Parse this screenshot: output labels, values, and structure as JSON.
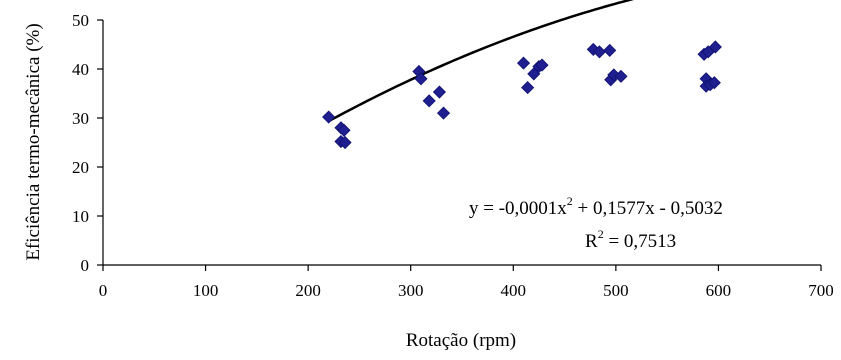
{
  "chart_data": {
    "type": "scatter",
    "title": "",
    "xlabel": "Rotação (rpm)",
    "ylabel": "Eficiência termo-mecânica (%)",
    "xlim": [
      0,
      700
    ],
    "ylim": [
      0,
      50
    ],
    "xticks": [
      "0",
      "100",
      "200",
      "300",
      "400",
      "500",
      "600",
      "700"
    ],
    "yticks": [
      "0",
      "10",
      "20",
      "30",
      "40",
      "50"
    ],
    "grid": false,
    "legend": "none",
    "colors": {
      "points": "#1f1f8f",
      "trendline": "#000000",
      "axes": "#000000"
    },
    "points": [
      [
        220,
        30.2
      ],
      [
        232,
        28.0
      ],
      [
        235,
        27.5
      ],
      [
        232,
        25.2
      ],
      [
        236,
        25.0
      ],
      [
        308,
        39.5
      ],
      [
        310,
        38.0
      ],
      [
        318,
        33.5
      ],
      [
        328,
        35.3
      ],
      [
        332,
        31.0
      ],
      [
        410,
        41.2
      ],
      [
        414,
        36.2
      ],
      [
        420,
        39.0
      ],
      [
        425,
        40.5
      ],
      [
        428,
        40.8
      ],
      [
        478,
        44.0
      ],
      [
        484,
        43.5
      ],
      [
        494,
        43.8
      ],
      [
        495,
        37.8
      ],
      [
        498,
        38.8
      ],
      [
        505,
        38.5
      ],
      [
        586,
        43.0
      ],
      [
        588,
        38.0
      ],
      [
        588,
        36.5
      ],
      [
        590,
        43.5
      ],
      [
        592,
        36.8
      ],
      [
        596,
        37.2
      ],
      [
        597,
        44.5
      ]
    ],
    "trendline": {
      "type": "polynomial",
      "coefficients": {
        "a": -0.0001,
        "b": 0.1577,
        "c": -0.5032
      },
      "x_range": [
        220,
        597
      ]
    },
    "annotations": {
      "equation_prefix": "y = -0,0001x",
      "equation_exp": "2",
      "equation_suffix": " + 0,1577x - 0,5032",
      "r2_prefix": "R",
      "r2_exp": "2",
      "r2_suffix": " = 0,7513"
    }
  }
}
